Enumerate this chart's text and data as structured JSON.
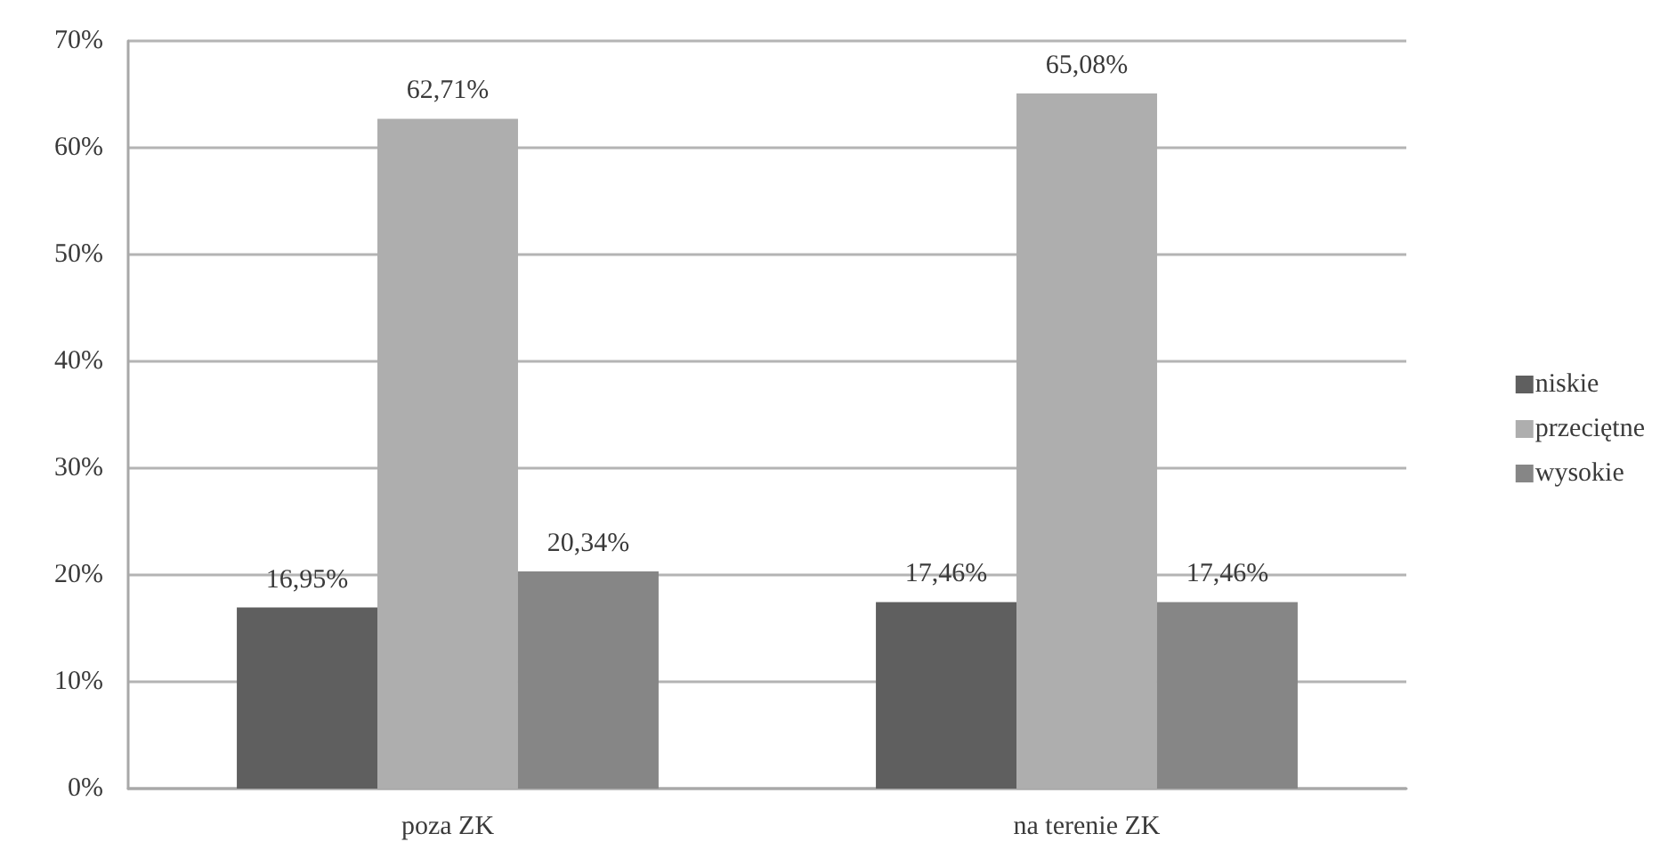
{
  "chart_data": {
    "type": "bar",
    "categories": [
      "poza ZK",
      "na terenie ZK"
    ],
    "series": [
      {
        "name": "niskie",
        "color": "#5f5f5f",
        "values": [
          16.95,
          17.46
        ],
        "value_labels": [
          "16,95%",
          "17,46%"
        ]
      },
      {
        "name": "przeciętne",
        "color": "#aeaeae",
        "values": [
          62.71,
          65.08
        ],
        "value_labels": [
          "62,71%",
          "65,08%"
        ]
      },
      {
        "name": "wysokie",
        "color": "#868686",
        "values": [
          20.34,
          17.46
        ],
        "value_labels": [
          "20,34%",
          "17,46%"
        ]
      }
    ],
    "ylim": [
      0,
      70
    ],
    "yticks": [
      {
        "value": 0,
        "label": "0%"
      },
      {
        "value": 10,
        "label": "10%"
      },
      {
        "value": 20,
        "label": "20%"
      },
      {
        "value": 30,
        "label": "30%"
      },
      {
        "value": 40,
        "label": "40%"
      },
      {
        "value": 50,
        "label": "50%"
      },
      {
        "value": 60,
        "label": "60%"
      },
      {
        "value": 70,
        "label": "70%"
      }
    ],
    "grid": "y",
    "legend": "right"
  }
}
